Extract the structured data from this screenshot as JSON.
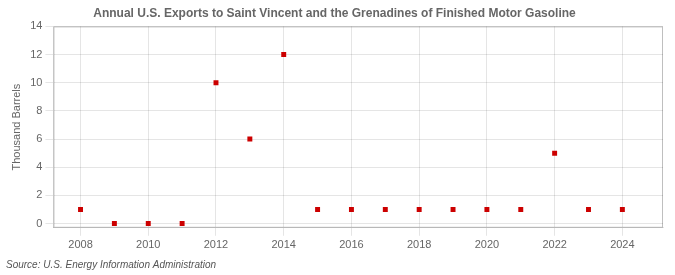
{
  "chart_data": {
    "type": "scatter",
    "title": "Annual U.S. Exports to Saint Vincent and the Grenadines of Finished Motor Gasoline",
    "ylabel": "Thousand Barrels",
    "source": "Source: U.S. Energy Information Administration",
    "x": [
      2008,
      2009,
      2010,
      2011,
      2012,
      2013,
      2014,
      2015,
      2016,
      2017,
      2018,
      2019,
      2020,
      2021,
      2022,
      2023,
      2024
    ],
    "values": [
      1,
      0,
      0,
      0,
      10,
      6,
      12,
      1,
      1,
      1,
      1,
      1,
      1,
      1,
      5,
      1,
      1
    ],
    "color": "#cc0000",
    "marker": "square",
    "xlim": [
      2007.2,
      2025.2
    ],
    "ylim": [
      -0.3,
      14
    ],
    "xticks": [
      2008,
      2010,
      2012,
      2014,
      2016,
      2018,
      2020,
      2022,
      2024
    ],
    "yticks": [
      0,
      2,
      4,
      6,
      8,
      10,
      12,
      14
    ],
    "grid": true
  }
}
